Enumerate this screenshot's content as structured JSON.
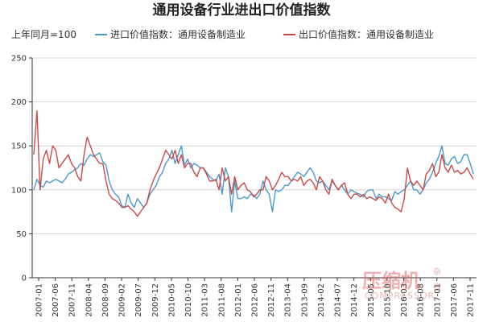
{
  "chart_data": {
    "type": "line",
    "title": "通用设备行业进出口价值指数",
    "subtitle": "上年同月=100",
    "ylim": [
      0,
      250
    ],
    "yticks": [
      0,
      50,
      100,
      150,
      200,
      250
    ],
    "x_tick_labels": [
      "2007-01",
      "2007-06",
      "2007-11",
      "2008-04",
      "2008-09",
      "2009-02",
      "2009-07",
      "2009-12",
      "2010-05",
      "2010-10",
      "2011-03",
      "2011-08",
      "2012-01",
      "2012-06",
      "2012-11",
      "2013-04",
      "2013-09",
      "2014-02",
      "2014-07",
      "2014-12",
      "2015-05",
      "2015-10",
      "2016-03",
      "2016-08",
      "2017-01",
      "2017-06",
      "2017-11"
    ],
    "grid": "horizontal",
    "legend_position": "top",
    "series": [
      {
        "name": "进口价值指数：通用设备制造业",
        "color": "#4a9ac8",
        "values": [
          100,
          112,
          105,
          103,
          110,
          108,
          110,
          112,
          110,
          108,
          112,
          118,
          120,
          123,
          125,
          130,
          128,
          135,
          140,
          138,
          140,
          142,
          132,
          128,
          110,
          100,
          95,
          92,
          82,
          80,
          95,
          85,
          80,
          90,
          85,
          80,
          85,
          95,
          100,
          105,
          115,
          120,
          130,
          135,
          145,
          130,
          140,
          150,
          128,
          135,
          125,
          130,
          128,
          125,
          125,
          120,
          115,
          112,
          110,
          118,
          95,
          125,
          115,
          75,
          110,
          90,
          90,
          92,
          90,
          95,
          94,
          90,
          95,
          110,
          100,
          95,
          75,
          100,
          98,
          100,
          105,
          105,
          110,
          115,
          120,
          118,
          115,
          120,
          125,
          120,
          110,
          108,
          110,
          105,
          100,
          110,
          105,
          100,
          105,
          100,
          95,
          100,
          98,
          96,
          95,
          92,
          98,
          100,
          100,
          90,
          95,
          92,
          92,
          90,
          88,
          98,
          95,
          98,
          100,
          105,
          110,
          100,
          100,
          95,
          100,
          108,
          112,
          120,
          130,
          138,
          150,
          130,
          128,
          135,
          138,
          130,
          132,
          140,
          140,
          130,
          118
        ]
      },
      {
        "name": "出口价值指数：通用设备制造业",
        "color": "#c84a4a",
        "values": [
          140,
          190,
          100,
          135,
          145,
          130,
          150,
          145,
          125,
          130,
          135,
          140,
          130,
          125,
          115,
          110,
          140,
          160,
          150,
          140,
          135,
          130,
          130,
          110,
          95,
          90,
          88,
          85,
          80,
          80,
          82,
          78,
          75,
          70,
          75,
          80,
          85,
          100,
          110,
          118,
          125,
          135,
          145,
          140,
          135,
          145,
          130,
          140,
          125,
          130,
          130,
          120,
          115,
          125,
          125,
          118,
          110,
          110,
          112,
          100,
          125,
          110,
          115,
          95,
          115,
          100,
          105,
          108,
          100,
          98,
          92,
          95,
          100,
          100,
          115,
          110,
          100,
          105,
          112,
          120,
          115,
          115,
          110,
          112,
          110,
          115,
          105,
          110,
          112,
          108,
          100,
          115,
          110,
          100,
          95,
          112,
          105,
          100,
          105,
          108,
          95,
          90,
          95,
          95,
          92,
          95,
          90,
          92,
          90,
          88,
          92,
          90,
          85,
          95,
          85,
          80,
          78,
          75,
          90,
          125,
          110,
          105,
          110,
          105,
          100,
          118,
          122,
          130,
          115,
          120,
          140,
          125,
          120,
          128,
          120,
          122,
          118,
          120,
          125,
          118,
          112
        ]
      }
    ]
  },
  "watermark": {
    "main": "压缩机",
    "sub": "COMPRESSOR",
    "side_top": "杂",
    "side_bottom": "志"
  }
}
